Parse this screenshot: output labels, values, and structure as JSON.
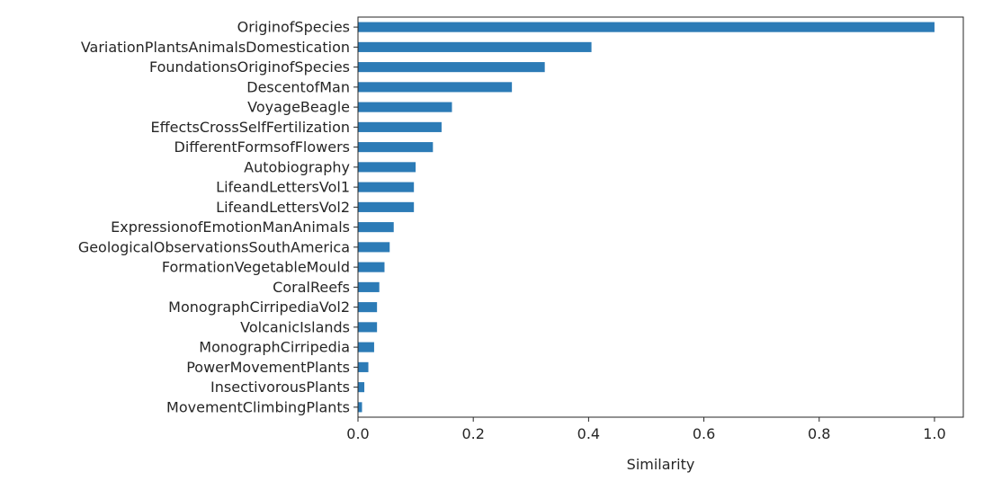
{
  "chart_data": {
    "type": "bar",
    "orientation": "horizontal",
    "categories": [
      "OriginofSpecies",
      "VariationPlantsAnimalsDomestication",
      "FoundationsOriginofSpecies",
      "DescentofMan",
      "VoyageBeagle",
      "EffectsCrossSelfFertilization",
      "DifferentFormsofFlowers",
      "Autobiography",
      "LifeandLettersVol1",
      "LifeandLettersVol2",
      "ExpressionofEmotionManAnimals",
      "GeologicalObservationsSouthAmerica",
      "FormationVegetableMould",
      "CoralReefs",
      "MonographCirripediaVol2",
      "VolcanicIslands",
      "MonographCirripedia",
      "PowerMovementPlants",
      "InsectivorousPlants",
      "MovementClimbingPlants"
    ],
    "values": [
      1.0,
      0.405,
      0.324,
      0.267,
      0.163,
      0.145,
      0.13,
      0.1,
      0.097,
      0.097,
      0.062,
      0.055,
      0.046,
      0.037,
      0.033,
      0.033,
      0.028,
      0.018,
      0.011,
      0.007
    ],
    "xlabel": "Similarity",
    "ylabel": "",
    "title": "",
    "xlim": [
      0,
      1.05
    ],
    "xticks": [
      "0.0",
      "0.2",
      "0.4",
      "0.6",
      "0.8",
      "1.0"
    ],
    "grid": false,
    "bar_color": "#2c7bb6"
  }
}
